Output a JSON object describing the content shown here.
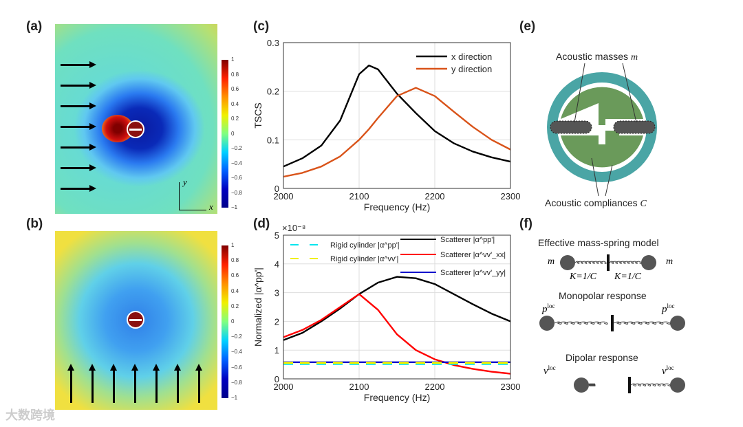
{
  "panel_labels": [
    "(a)",
    "(b)",
    "(c)",
    "(d)",
    "(e)",
    "(f)"
  ],
  "colorbar_ticks": [
    "1",
    "0.8",
    "0.6",
    "0.4",
    "0.2",
    "0",
    "−0.2",
    "−0.4",
    "−0.6",
    "−0.8",
    "−1"
  ],
  "axes_a": {
    "x": "x",
    "y": "y"
  },
  "panel_e": {
    "masses": "Acoustic masses",
    "masses_sym": "m",
    "compliances": "Acoustic compliances",
    "compliances_sym": "C"
  },
  "panel_f": {
    "title1": "Effective mass-spring model",
    "m": "m",
    "k": "K=1/C",
    "title2": "Monopolar response",
    "p": "p",
    "loc": "loc",
    "title3": "Dipolar response",
    "v": "v"
  },
  "watermark": "大数跨境",
  "chart_data": [
    {
      "type": "line",
      "title": "",
      "xlabel": "Frequency (Hz)",
      "ylabel": "TSCS",
      "xlim": [
        2000,
        2300
      ],
      "ylim": [
        0,
        0.3
      ],
      "xticks": [
        "2000",
        "2100",
        "2200",
        "2300"
      ],
      "yticks": [
        "0",
        "0.1",
        "0.2",
        "0.3"
      ],
      "grid": true,
      "legend": "top-right",
      "x": [
        2000,
        2025,
        2050,
        2075,
        2100,
        2113,
        2125,
        2150,
        2175,
        2200,
        2225,
        2250,
        2275,
        2300
      ],
      "series": [
        {
          "name": "x direction",
          "color": "#000000",
          "values": [
            0.045,
            0.062,
            0.088,
            0.14,
            0.235,
            0.253,
            0.245,
            0.195,
            0.155,
            0.118,
            0.093,
            0.076,
            0.064,
            0.055
          ]
        },
        {
          "name": "y direction",
          "color": "#d95319",
          "values": [
            0.024,
            0.032,
            0.045,
            0.066,
            0.1,
            0.122,
            0.145,
            0.19,
            0.207,
            0.19,
            0.158,
            0.127,
            0.1,
            0.08
          ]
        }
      ]
    },
    {
      "type": "line",
      "title": "",
      "xlabel": "Frequency (Hz)",
      "ylabel": "Normalized |α^pp'|",
      "exponent": "×10⁻⁸",
      "xlim": [
        2000,
        2300
      ],
      "ylim": [
        0,
        5
      ],
      "xticks": [
        "2000",
        "2100",
        "2200",
        "2300"
      ],
      "yticks": [
        "0",
        "1",
        "2",
        "3",
        "4",
        "5"
      ],
      "grid": true,
      "x": [
        2000,
        2025,
        2050,
        2075,
        2100,
        2125,
        2150,
        2175,
        2200,
        2225,
        2250,
        2275,
        2300
      ],
      "series": [
        {
          "name": "Scatterer |α^pp'|",
          "color": "#000000",
          "values": [
            1.35,
            1.6,
            2.0,
            2.45,
            2.95,
            3.35,
            3.55,
            3.5,
            3.3,
            2.95,
            2.6,
            2.27,
            2.0
          ]
        },
        {
          "name": "Scatterer |α^vv'_xx|",
          "color": "#ff0000",
          "values": [
            1.45,
            1.7,
            2.05,
            2.5,
            2.95,
            2.4,
            1.55,
            1.0,
            0.68,
            0.48,
            0.35,
            0.25,
            0.18
          ]
        },
        {
          "name": "Scatterer |α^vv'_yy|",
          "color": "#0000cc",
          "values": [
            0.58,
            0.58,
            0.58,
            0.58,
            0.58,
            0.58,
            0.58,
            0.58,
            0.58,
            0.58,
            0.58,
            0.58,
            0.58
          ]
        },
        {
          "name": "Rigid cylinder |α^pp'|",
          "color": "#00e5ee",
          "dashed": true,
          "values": [
            0.52,
            0.52,
            0.52,
            0.52,
            0.52,
            0.52,
            0.52,
            0.52,
            0.52,
            0.52,
            0.52,
            0.52,
            0.52
          ]
        },
        {
          "name": "Rigid cylinder |α^vv'|",
          "color": "#f0f000",
          "dashed": true,
          "values": [
            0.56,
            0.56,
            0.56,
            0.56,
            0.56,
            0.56,
            0.56,
            0.56,
            0.56,
            0.56,
            0.56,
            0.56,
            0.56
          ]
        }
      ]
    }
  ]
}
